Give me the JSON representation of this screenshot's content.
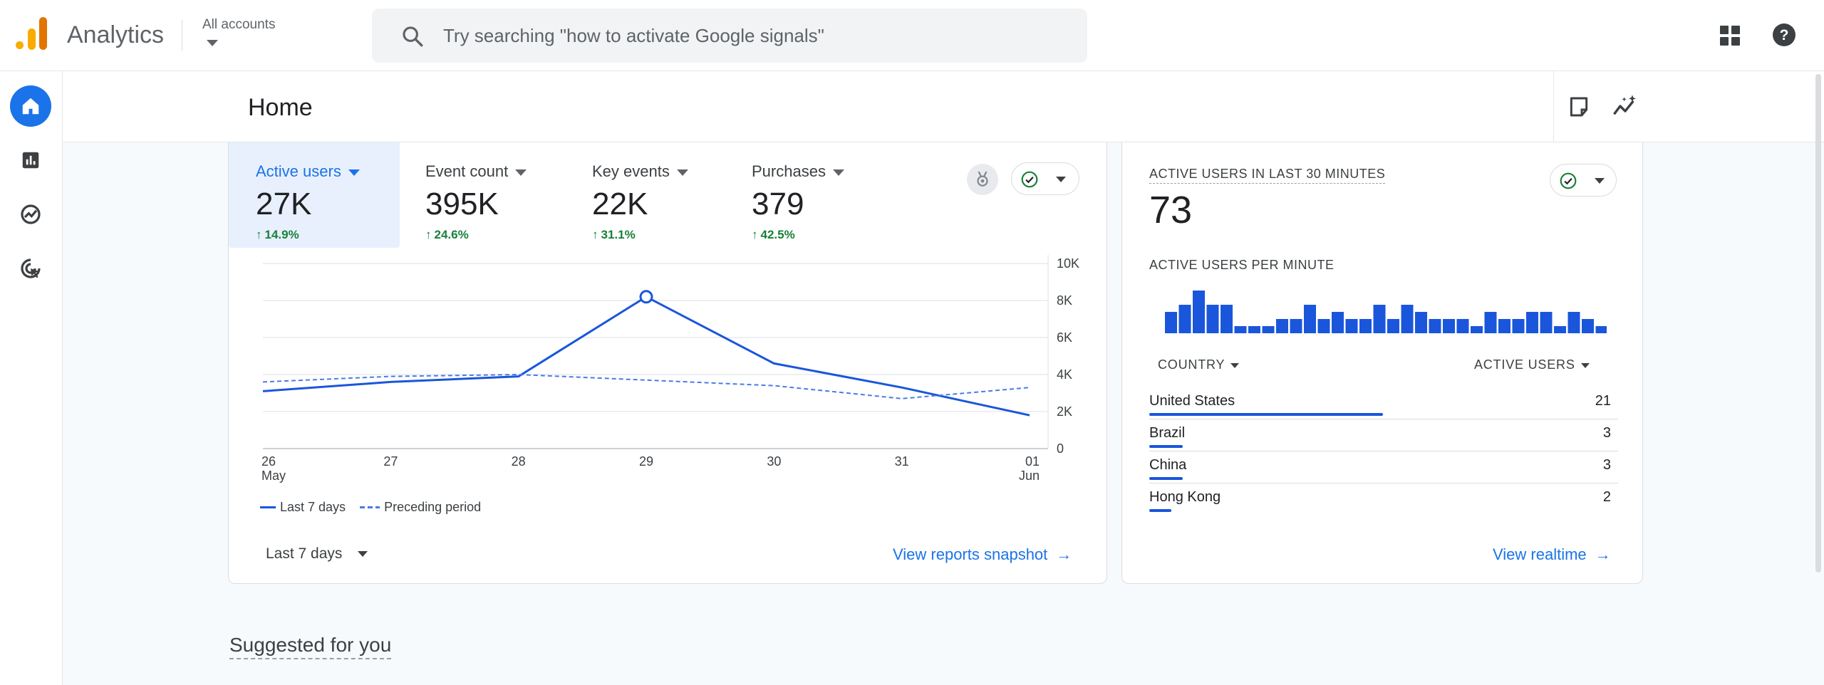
{
  "app": {
    "title": "Analytics",
    "account_label": "All accounts"
  },
  "search": {
    "placeholder": "Try searching \"how to activate Google signals\""
  },
  "page": {
    "title": "Home"
  },
  "metrics": [
    {
      "label": "Active users",
      "value": "27K",
      "delta": "14.9%"
    },
    {
      "label": "Event count",
      "value": "395K",
      "delta": "24.6%"
    },
    {
      "label": "Key events",
      "value": "22K",
      "delta": "31.1%"
    },
    {
      "label": "Purchases",
      "value": "379",
      "delta": "42.5%"
    }
  ],
  "chart_data": {
    "type": "line",
    "categories": [
      "26 May",
      "27",
      "28",
      "29",
      "30",
      "31",
      "01 Jun"
    ],
    "x_tick_labels": [
      [
        "26",
        "May"
      ],
      [
        "27"
      ],
      [
        "28"
      ],
      [
        "29"
      ],
      [
        "30"
      ],
      [
        "31"
      ],
      [
        "01",
        "Jun"
      ]
    ],
    "y_tick_labels": [
      "10K",
      "8K",
      "6K",
      "4K",
      "2K",
      "0"
    ],
    "ylim": [
      0,
      10000
    ],
    "series": [
      {
        "name": "Last 7 days",
        "style": "solid",
        "values": [
          3100,
          3600,
          3900,
          8200,
          4600,
          3300,
          1800
        ]
      },
      {
        "name": "Preceding period",
        "style": "dashed",
        "values": [
          3600,
          3900,
          4000,
          3700,
          3400,
          2700,
          3300
        ]
      }
    ],
    "highlight_index": 3,
    "legend_position": "bottom-left",
    "grid": true,
    "color": "#1a56db"
  },
  "card_footer": {
    "range": "Last 7 days",
    "link": "View reports snapshot"
  },
  "realtime": {
    "title": "ACTIVE USERS IN LAST 30 MINUTES",
    "value": "73",
    "per_minute_label": "ACTIVE USERS PER MINUTE",
    "per_minute": [
      3,
      4,
      6,
      4,
      4,
      1,
      1,
      1,
      2,
      2,
      4,
      2,
      3,
      2,
      2,
      4,
      2,
      4,
      3,
      2,
      2,
      2,
      1,
      3,
      2,
      2,
      3,
      3,
      1,
      3,
      2,
      1,
      1
    ],
    "country_header": "COUNTRY",
    "users_header": "ACTIVE USERS",
    "countries": [
      {
        "name": "United States",
        "value": "21",
        "share": 1.0
      },
      {
        "name": "Brazil",
        "value": "3",
        "share": 0.143
      },
      {
        "name": "China",
        "value": "3",
        "share": 0.143
      },
      {
        "name": "Hong Kong",
        "value": "2",
        "share": 0.095
      }
    ],
    "link": "View realtime"
  },
  "suggested": {
    "title": "Suggested for you"
  },
  "colors": {
    "accent": "#1a73e8",
    "series": "#1a56db",
    "positive": "#188038"
  }
}
